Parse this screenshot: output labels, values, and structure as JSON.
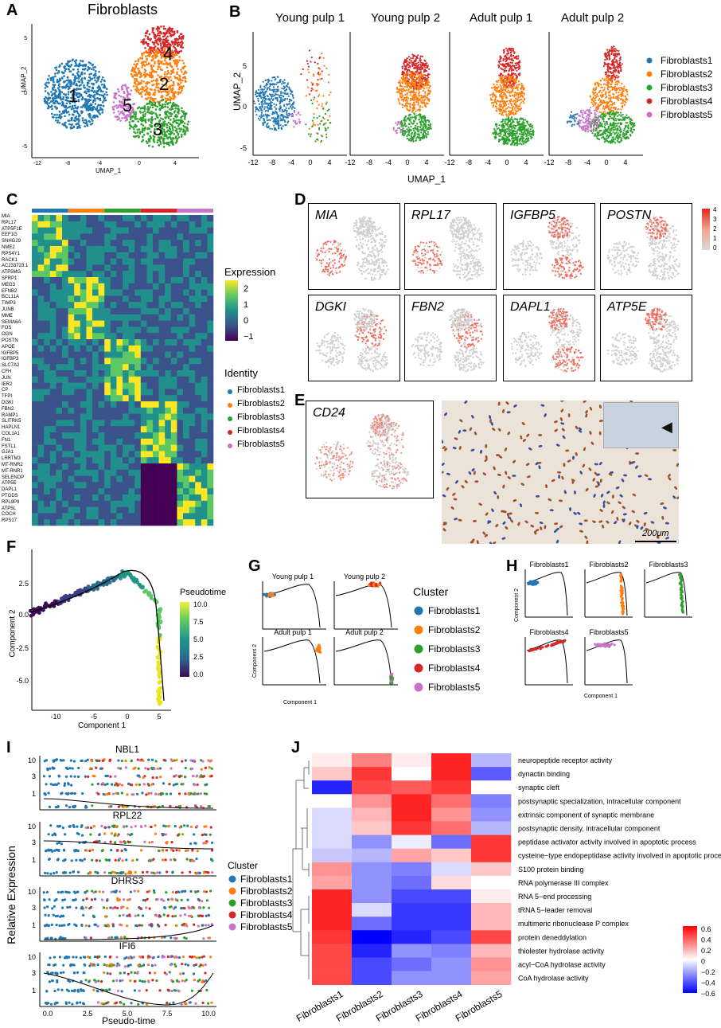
{
  "panels": {
    "A": "A",
    "B": "B",
    "C": "C",
    "D": "D",
    "E": "E",
    "F": "F",
    "G": "G",
    "H": "H",
    "I": "I",
    "J": "J"
  },
  "A": {
    "title": "Fibroblasts",
    "xlabel": "UMAP_1",
    "ylabel": "UMAP_2",
    "cluster_labels": [
      "1",
      "2",
      "3",
      "4",
      "5"
    ],
    "xticks": [
      "-12",
      "-8",
      "-4",
      "0",
      "4"
    ],
    "yticks": [
      "5",
      "0",
      "-5"
    ]
  },
  "B": {
    "titles": [
      "Young pulp 1",
      "Young pulp 2",
      "Adult pulp 1",
      "Adult pulp 2"
    ],
    "xlabel": "UMAP_1",
    "ylabel": "UMAP_2",
    "xticks": [
      "-12",
      "-8",
      "-4",
      "0",
      "4"
    ],
    "yticks": [
      "5",
      "0",
      "-5"
    ],
    "legend": [
      "Fibroblasts1",
      "Fibroblasts2",
      "Fibroblasts3",
      "Fibroblasts4",
      "Fibroblasts5"
    ]
  },
  "colors": {
    "c1": "#1f77b4",
    "c2": "#ff7f0e",
    "c3": "#2ca02c",
    "c4": "#d62728",
    "c5": "#c774c9"
  },
  "C": {
    "genes": [
      "MIA",
      "RPL17",
      "ATP5F1E",
      "EEF1G",
      "SNHG29",
      "NME2",
      "RPS4Y1",
      "RACK1",
      "AC233723.1",
      "ATP5MG",
      "SFRP1",
      "MEG3",
      "EFNB2",
      "BCL11A",
      "TIMP3",
      "JUNB",
      "MME",
      "SEMA6A",
      "FOS",
      "OGN",
      "POSTN",
      "APOE",
      "IGFBP5",
      "IGFBP3",
      "SLC7A2",
      "CFH",
      "JUN",
      "IER2",
      "CP",
      "TFPI",
      "DGKI",
      "FBN2",
      "RAMP1",
      "SLITRK5",
      "HAPLN1",
      "COL1A1",
      "FN1",
      "FSTL1",
      "GJA1",
      "LRRTM3",
      "MT-RNR2",
      "MT-RNR1",
      "SELENOP",
      "ATP5E",
      "DAPL1",
      "PTGDS",
      "RPL9P9",
      "ATP5L",
      "COCH",
      "RPS17"
    ],
    "expression_title": "Expression",
    "expression_ticks": [
      "2",
      "1",
      "0",
      "−1"
    ],
    "identity_title": "Identity",
    "identity": [
      "Fibroblasts1",
      "Fibroblasts2",
      "Fibroblasts3",
      "Fibroblasts4",
      "Fibroblasts5"
    ]
  },
  "D": {
    "genes": [
      "MIA",
      "RPL17",
      "IGFBP5",
      "POSTN",
      "DGKI",
      "FBN2",
      "DAPL1",
      "ATP5E"
    ],
    "scale": [
      "4",
      "3",
      "2",
      "1",
      "0"
    ]
  },
  "E": {
    "gene": "CD24",
    "scalebar": "200μm"
  },
  "F": {
    "xlabel": "Component 1",
    "ylabel": "Component 2",
    "legend_title": "Pseudotime",
    "legend_ticks": [
      "10.0",
      "7.5",
      "5.0",
      "2.5",
      "0.0"
    ],
    "xticks": [
      "-10",
      "-5",
      "0",
      "5"
    ],
    "yticks": [
      "2.5",
      "0.0",
      "-2.5",
      "-5.0"
    ]
  },
  "G": {
    "titles": [
      "Young pulp 1",
      "Young pulp 2",
      "Adult pulp 1",
      "Adult pulp 2"
    ],
    "legend_title": "Cluster",
    "legend": [
      "Fibroblasts1",
      "Fibroblasts2",
      "Fibroblasts3",
      "Fibroblasts4",
      "Fibroblasts5"
    ],
    "xlabel": "Component 1",
    "ylabel": "Component 2"
  },
  "H": {
    "titles": [
      "Fibroblasts1",
      "Fibroblasts2",
      "Fibroblasts3",
      "Fibroblasts4",
      "Fibroblasts5"
    ],
    "xlabel": "Component 1",
    "ylabel": "Component 2"
  },
  "I": {
    "genes": [
      "NBL1",
      "RPL22",
      "DHRS3",
      "IFI6"
    ],
    "ylabel": "Relative Expression",
    "xlabel": "Pseudo-time",
    "yticks": [
      "10",
      "3",
      "1"
    ],
    "xticks": [
      "0.0",
      "2.5",
      "5.0",
      "7.5",
      "10.0"
    ],
    "legend_title": "Cluster",
    "legend": [
      "Fibroblasts1",
      "Fibroblasts2",
      "Fibroblasts3",
      "Fibroblasts4",
      "Fibroblasts5"
    ]
  },
  "J": {
    "terms": [
      "neuropeptide receptor activity",
      "dynactin binding",
      "synaptic cleft",
      "postsynaptic specialization, intracellular component",
      "extrinsic component of synaptic membrane",
      "postsynaptic density, intracellular component",
      "peptidase activator activity involved in apoptotic process",
      "cysteine−type endopeptidase activity involved in apoptotic process",
      "S100 protein binding",
      "RNA polymerase III complex",
      "RNA 5−end processing",
      "tRNA 5−leader removal",
      "multimeric ribonuclease P complex",
      "protein deneddylation",
      "thiolester hydrolase activity",
      "acyl−CoA hydrolase activity",
      "CoA hydrolase activity"
    ],
    "clusters": [
      "Fibroblasts1",
      "Fibroblasts2",
      "Fibroblasts3",
      "Fibroblasts4",
      "Fibroblasts5"
    ],
    "scale": [
      "0.6",
      "0.4",
      "0.2",
      "0",
      "−0.2",
      "−0.4",
      "−0.6"
    ]
  },
  "chart_data": [
    {
      "type": "heatmap",
      "panel": "J",
      "rows": [
        "neuropeptide receptor activity",
        "dynactin binding",
        "synaptic cleft",
        "postsynaptic specialization, intracellular component",
        "extrinsic component of synaptic membrane",
        "postsynaptic density, intracellular component",
        "peptidase activator activity involved in apoptotic process",
        "cysteine−type endopeptidase activity involved in apoptotic process",
        "S100 protein binding",
        "RNA polymerase III complex",
        "RNA 5−end processing",
        "tRNA 5−leader removal",
        "multimeric ribonuclease P complex",
        "protein deneddylation",
        "thiolester hydrolase activity",
        "acyl−CoA hydrolase activity",
        "CoA hydrolase activity"
      ],
      "columns": [
        "Fibroblasts1",
        "Fibroblasts2",
        "Fibroblasts3",
        "Fibroblasts4",
        "Fibroblasts5"
      ],
      "values": [
        [
          0.05,
          0.35,
          0.05,
          0.6,
          -0.2
        ],
        [
          0.15,
          0.55,
          0.0,
          0.6,
          -0.45
        ],
        [
          -0.6,
          0.5,
          0.45,
          0.55,
          0.0
        ],
        [
          0.0,
          0.3,
          0.6,
          0.4,
          -0.35
        ],
        [
          -0.1,
          0.2,
          0.6,
          0.3,
          -0.3
        ],
        [
          -0.1,
          0.15,
          0.55,
          0.4,
          -0.2
        ],
        [
          -0.1,
          -0.3,
          -0.05,
          -0.4,
          0.55
        ],
        [
          -0.15,
          -0.2,
          0.25,
          0.15,
          0.55
        ],
        [
          0.3,
          -0.3,
          -0.35,
          -0.1,
          0.15
        ],
        [
          0.25,
          -0.3,
          -0.4,
          0.1,
          0.0
        ],
        [
          0.6,
          -0.3,
          -0.5,
          -0.5,
          0.05
        ],
        [
          0.6,
          -0.1,
          -0.55,
          -0.55,
          0.2
        ],
        [
          0.6,
          -0.4,
          -0.55,
          -0.55,
          0.2
        ],
        [
          0.55,
          -0.7,
          -0.6,
          -0.5,
          0.5
        ],
        [
          0.5,
          -0.6,
          -0.3,
          -0.35,
          0.2
        ],
        [
          0.5,
          -0.5,
          -0.4,
          -0.3,
          0.3
        ],
        [
          0.5,
          -0.5,
          -0.3,
          -0.3,
          0.25
        ]
      ],
      "colorbar": [
        -0.6,
        0.6
      ]
    }
  ]
}
